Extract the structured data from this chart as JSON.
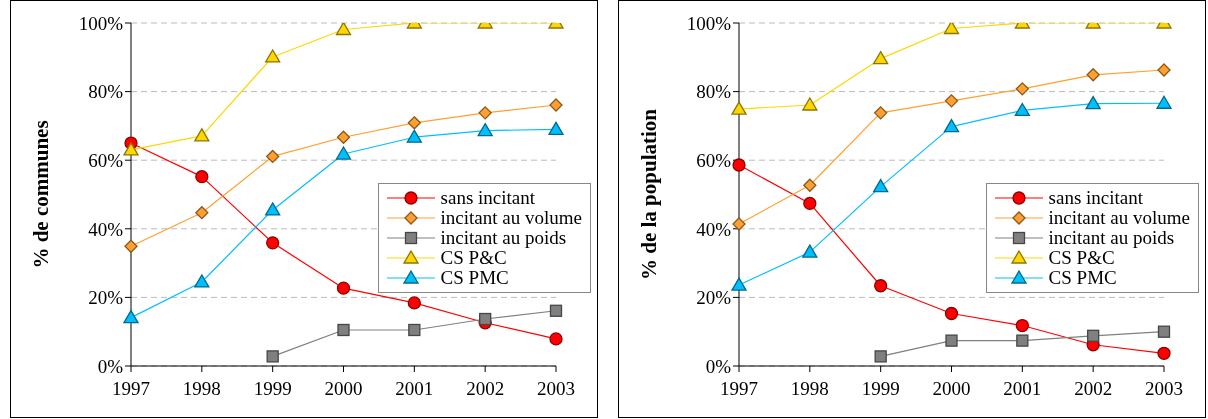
{
  "chart_data": [
    {
      "type": "line",
      "ylabel": "% de communes",
      "categories": [
        "1997",
        "1998",
        "1999",
        "2000",
        "2001",
        "2002",
        "2003"
      ],
      "ylim": [
        0,
        100
      ],
      "yticks": [
        {
          "value": 0,
          "label": "0%"
        },
        {
          "value": 20,
          "label": "20%"
        },
        {
          "value": 40,
          "label": "40%"
        },
        {
          "value": 60,
          "label": "60%"
        },
        {
          "value": 80,
          "label": "80%"
        },
        {
          "value": 100,
          "label": "100%"
        }
      ],
      "grid": "y",
      "legend": "right",
      "series": [
        {
          "name": "sans incitant",
          "color": "#ff0000",
          "marker": "circle",
          "values": [
            65,
            55.2,
            35.9,
            22.7,
            18.4,
            12.6,
            7.9
          ]
        },
        {
          "name": "incitant au volume",
          "color": "#ffa030",
          "marker": "diamond",
          "values": [
            34.9,
            44.7,
            61.1,
            66.7,
            70.9,
            73.8,
            76.1
          ]
        },
        {
          "name": "incitant au poids",
          "color": "#808080",
          "marker": "square",
          "values": [
            null,
            null,
            2.8,
            10.5,
            10.5,
            13.7,
            16.1
          ]
        },
        {
          "name": "CS P&C",
          "color": "#ffd700",
          "marker": "triangle",
          "values": [
            63,
            67.1,
            90.1,
            98.1,
            100,
            100,
            100
          ]
        },
        {
          "name": "CS PMC",
          "color": "#00bfff",
          "marker": "triangle",
          "values": [
            14.1,
            24.5,
            45.5,
            61.8,
            66.7,
            68.6,
            69
          ]
        }
      ]
    },
    {
      "type": "line",
      "ylabel": "% de la population",
      "categories": [
        "1997",
        "1998",
        "1999",
        "2000",
        "2001",
        "2002",
        "2003"
      ],
      "ylim": [
        0,
        100
      ],
      "yticks": [
        {
          "value": 0,
          "label": "0%"
        },
        {
          "value": 20,
          "label": "20%"
        },
        {
          "value": 40,
          "label": "40%"
        },
        {
          "value": 60,
          "label": "60%"
        },
        {
          "value": 80,
          "label": "80%"
        },
        {
          "value": 100,
          "label": "100%"
        }
      ],
      "grid": "y",
      "legend": "right",
      "series": [
        {
          "name": "sans incitant",
          "color": "#ff0000",
          "marker": "circle",
          "values": [
            58.6,
            47.4,
            23.4,
            15.3,
            11.8,
            6.2,
            3.7
          ]
        },
        {
          "name": "incitant au volume",
          "color": "#ffa030",
          "marker": "diamond",
          "values": [
            41.4,
            52.7,
            73.8,
            77.3,
            80.8,
            84.9,
            86.3
          ]
        },
        {
          "name": "incitant au poids",
          "color": "#808080",
          "marker": "square",
          "values": [
            null,
            null,
            2.8,
            7.4,
            7.4,
            8.8,
            10
          ]
        },
        {
          "name": "CS P&C",
          "color": "#ffd700",
          "marker": "triangle",
          "values": [
            74.9,
            76.1,
            89.6,
            98.4,
            100,
            100,
            100
          ]
        },
        {
          "name": "CS PMC",
          "color": "#00bfff",
          "marker": "triangle",
          "values": [
            23.6,
            33.2,
            52.3,
            69.8,
            74.5,
            76.5,
            76.6
          ]
        }
      ]
    }
  ]
}
